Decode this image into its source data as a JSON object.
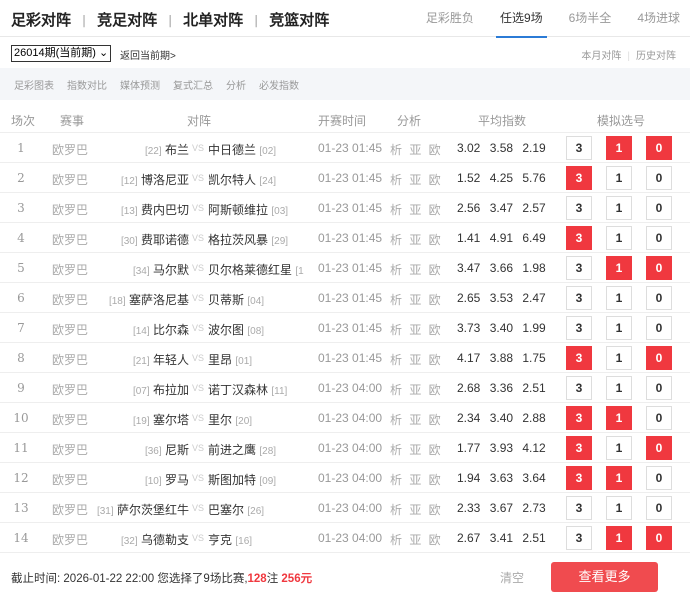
{
  "header": {
    "main_tabs": [
      "足彩对阵",
      "竞足对阵",
      "北单对阵",
      "竞篮对阵"
    ],
    "separator": "|",
    "sub_tabs": [
      "足彩胜负",
      "任选9场",
      "6场半全",
      "4场进球"
    ],
    "active_sub_tab": "任选9场"
  },
  "toolbar": {
    "period_select": "26014期(当前期)",
    "back_link": "返回当前期>",
    "history_links": [
      "本月对阵",
      "历史对阵"
    ]
  },
  "filter_links": [
    "足彩图表",
    "指数对比",
    "媒体预测",
    "复式汇总",
    "分析",
    "必发指数"
  ],
  "table": {
    "columns": [
      "场次",
      "赛事",
      "对阵",
      "开赛时间",
      "分析",
      "平均指数",
      "模拟选号"
    ],
    "vs_label": "VS",
    "analysis_label": "析 亚 欧",
    "pick_labels": [
      "3",
      "1",
      "0"
    ],
    "rows": [
      {
        "no": "1",
        "league": "欧罗巴",
        "home_rank": "[22]",
        "home": "布兰",
        "away": "中日德兰",
        "away_rank": "[02]",
        "time": "01-23 01:45",
        "odds": "3.02 3.58 2.19",
        "picks": [
          false,
          true,
          true
        ]
      },
      {
        "no": "2",
        "league": "欧罗巴",
        "home_rank": "[12]",
        "home": "博洛尼亚",
        "away": "凯尔特人",
        "away_rank": "[24]",
        "time": "01-23 01:45",
        "odds": "1.52 4.25 5.76",
        "picks": [
          true,
          false,
          false
        ]
      },
      {
        "no": "3",
        "league": "欧罗巴",
        "home_rank": "[13]",
        "home": "费内巴切",
        "away": "阿斯顿维拉",
        "away_rank": "[03]",
        "time": "01-23 01:45",
        "odds": "2.56 3.47 2.57",
        "picks": [
          false,
          false,
          false
        ]
      },
      {
        "no": "4",
        "league": "欧罗巴",
        "home_rank": "[30]",
        "home": "费耶诺德",
        "away": "格拉茨风暴",
        "away_rank": "[29]",
        "time": "01-23 01:45",
        "odds": "1.41 4.91 6.49",
        "picks": [
          true,
          false,
          false
        ]
      },
      {
        "no": "5",
        "league": "欧罗巴",
        "home_rank": "[34]",
        "home": "马尔默",
        "away": "贝尔格莱德红星",
        "away_rank": "[1",
        "time": "01-23 01:45",
        "odds": "3.47 3.66 1.98",
        "picks": [
          false,
          true,
          true
        ]
      },
      {
        "no": "6",
        "league": "欧罗巴",
        "home_rank": "[18]",
        "home": "塞萨洛尼基",
        "away": "贝蒂斯",
        "away_rank": "[04]",
        "time": "01-23 01:45",
        "odds": "2.65 3.53 2.47",
        "picks": [
          false,
          false,
          false
        ]
      },
      {
        "no": "7",
        "league": "欧罗巴",
        "home_rank": "[14]",
        "home": "比尔森",
        "away": "波尔图",
        "away_rank": "[08]",
        "time": "01-23 01:45",
        "odds": "3.73 3.40 1.99",
        "picks": [
          false,
          false,
          false
        ]
      },
      {
        "no": "8",
        "league": "欧罗巴",
        "home_rank": "[21]",
        "home": "年轻人",
        "away": "里昂",
        "away_rank": "[01]",
        "time": "01-23 01:45",
        "odds": "4.17 3.88 1.75",
        "picks": [
          true,
          false,
          true
        ]
      },
      {
        "no": "9",
        "league": "欧罗巴",
        "home_rank": "[07]",
        "home": "布拉加",
        "away": "诺丁汉森林",
        "away_rank": "[11]",
        "time": "01-23 04:00",
        "odds": "2.68 3.36 2.51",
        "picks": [
          false,
          false,
          false
        ]
      },
      {
        "no": "10",
        "league": "欧罗巴",
        "home_rank": "[19]",
        "home": "塞尔塔",
        "away": "里尔",
        "away_rank": "[20]",
        "time": "01-23 04:00",
        "odds": "2.34 3.40 2.88",
        "picks": [
          true,
          true,
          false
        ]
      },
      {
        "no": "11",
        "league": "欧罗巴",
        "home_rank": "[36]",
        "home": "尼斯",
        "away": "前进之鹰",
        "away_rank": "[28]",
        "time": "01-23 04:00",
        "odds": "1.77 3.93 4.12",
        "picks": [
          true,
          false,
          true
        ]
      },
      {
        "no": "12",
        "league": "欧罗巴",
        "home_rank": "[10]",
        "home": "罗马",
        "away": "斯图加特",
        "away_rank": "[09]",
        "time": "01-23 04:00",
        "odds": "1.94 3.63 3.64",
        "picks": [
          true,
          true,
          false
        ]
      },
      {
        "no": "13",
        "league": "欧罗巴",
        "home_rank": "[31]",
        "home": "萨尔茨堡红牛",
        "away": "巴塞尔",
        "away_rank": "[26]",
        "time": "01-23 04:00",
        "odds": "2.33 3.67 2.73",
        "picks": [
          false,
          false,
          false
        ]
      },
      {
        "no": "14",
        "league": "欧罗巴",
        "home_rank": "[32]",
        "home": "乌德勒支",
        "away": "亨克",
        "away_rank": "[16]",
        "time": "01-23 04:00",
        "odds": "2.67 3.41 2.51",
        "picks": [
          false,
          true,
          true
        ]
      }
    ]
  },
  "footer": {
    "deadline_label": "截止时间:",
    "deadline": "2026-01-22 22:00",
    "selected_text": "您选择了9场比赛,",
    "bets": "128",
    "bets_unit": "注",
    "amount": "256元",
    "clear": "清空",
    "more": "查看更多"
  },
  "colors": {
    "accent_red": "#f0383f",
    "tab_underline": "#2b7bd6"
  }
}
